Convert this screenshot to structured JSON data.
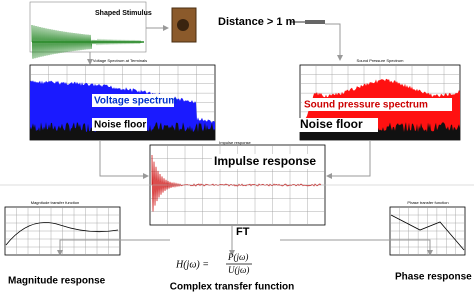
{
  "stimulus": {
    "label": "Shaped Stimulus"
  },
  "distance": "Distance > 1 m",
  "voltage_panel": {
    "title": "Voltage Spectrum at Terminals",
    "signal_label": "Voltage spectrum",
    "noise_label": "Noise floor"
  },
  "pressure_panel": {
    "title": "Sound Pressure Spectrum",
    "signal_label": "Sound pressure spectrum",
    "noise_label": "Noise floor"
  },
  "impulse_panel": {
    "label": "Impulse response"
  },
  "magnitude_panel": {
    "title": "Magnitude transfer function"
  },
  "phase_panel": {
    "title": "Phase transfer function"
  },
  "transform": "FT",
  "formula": {
    "lhs": "H(jω) =",
    "numerator": "P(jω)",
    "denominator": "U(jω)"
  },
  "captions": {
    "magnitude": "Magnitude response",
    "transfer": "Complex transfer function",
    "phase": "Phase response"
  }
}
